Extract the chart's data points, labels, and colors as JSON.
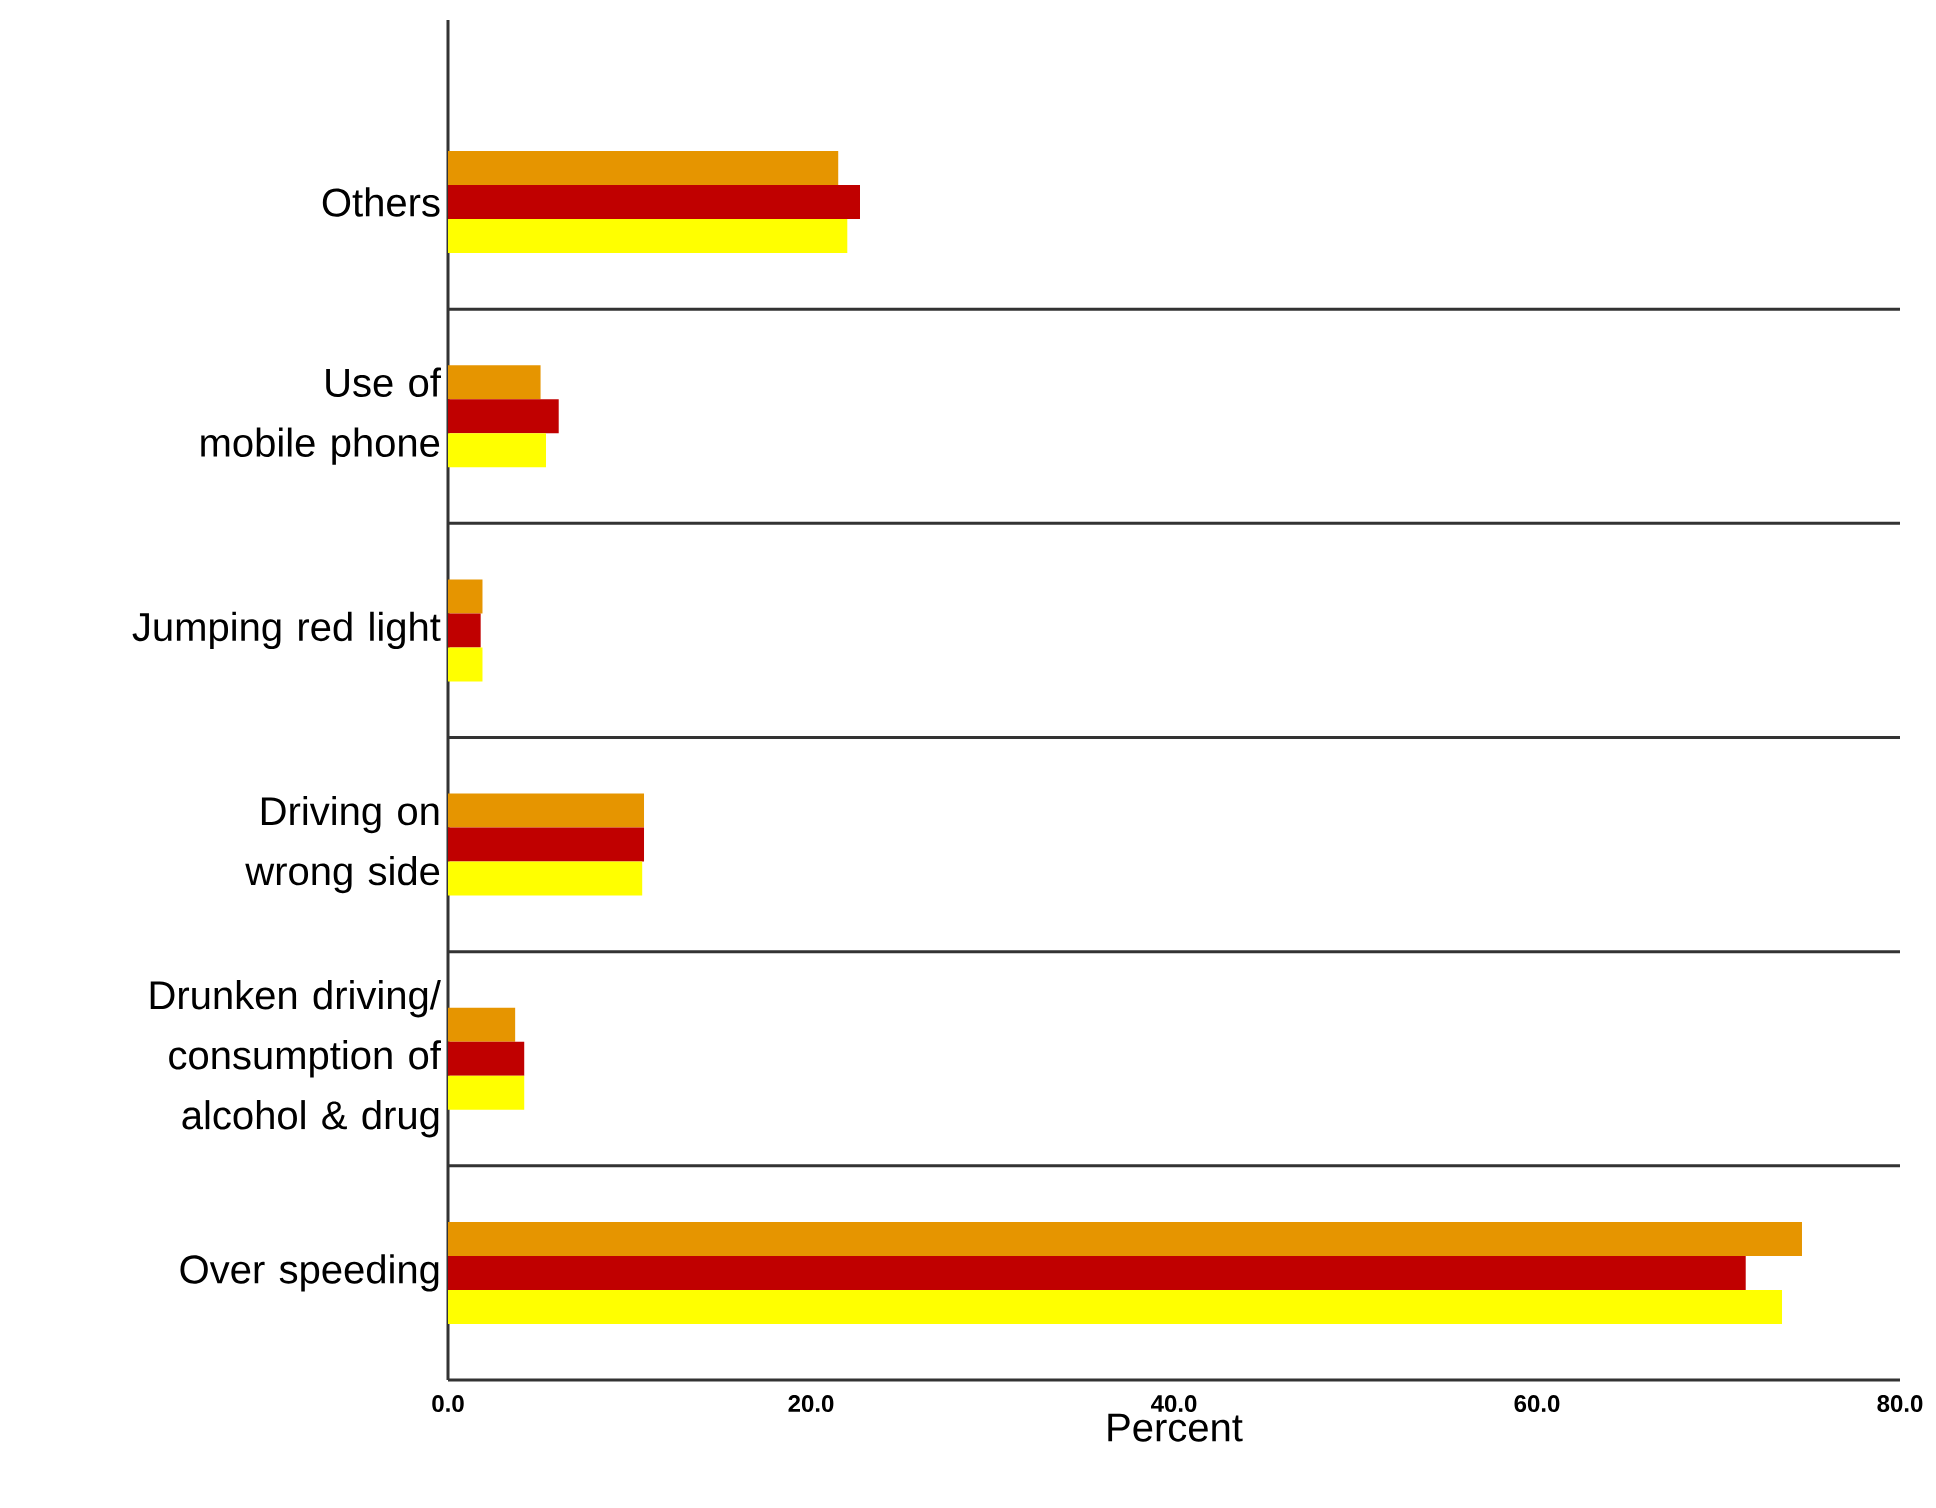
{
  "chart_data": {
    "type": "bar",
    "orientation": "horizontal",
    "xlabel": "Percent",
    "categories": [
      "Others",
      "Use of mobile phone",
      "Jumping red light",
      "Driving on wrong side",
      "Drunken driving/ consumption of alcohol & drug",
      "Over speeding"
    ],
    "series": [
      {
        "color": "#e69500",
        "values": [
          21.5,
          5.1,
          1.9,
          10.8,
          3.7,
          74.6
        ]
      },
      {
        "color": "#c00000",
        "values": [
          22.7,
          6.1,
          1.8,
          10.8,
          4.2,
          71.5
        ]
      },
      {
        "color": "#ffff00",
        "values": [
          22.0,
          5.4,
          1.9,
          10.7,
          4.2,
          73.5
        ]
      }
    ],
    "xlim": [
      0,
      80
    ],
    "xticks": [
      {
        "value": 0,
        "label": "0.0"
      },
      {
        "value": 20,
        "label": "20.0"
      },
      {
        "value": 40,
        "label": "40.0"
      },
      {
        "value": 60,
        "label": "60.0"
      },
      {
        "value": 80,
        "label": "80.0"
      }
    ],
    "grid": "y"
  }
}
